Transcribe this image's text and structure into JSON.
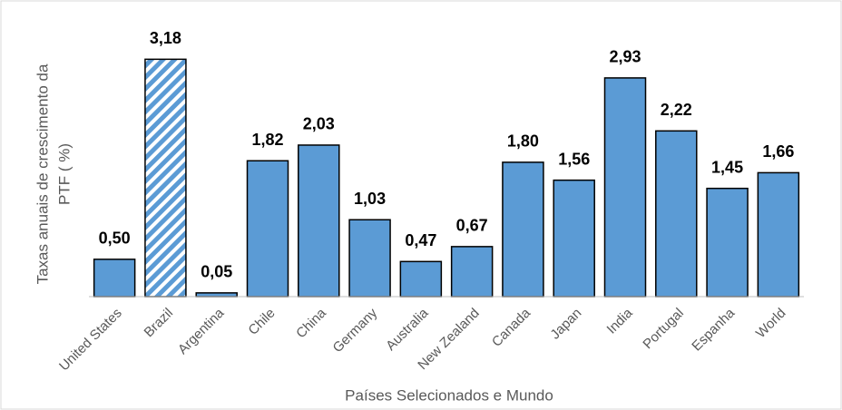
{
  "chart_data": {
    "type": "bar",
    "x_label": "Países Selecionados e Mundo",
    "y_label": [
      "Taxas anuais de crescimento da",
      "PTF ( %)"
    ],
    "categories": [
      "United States",
      "Brazil",
      "Argentina",
      "Chile",
      "China",
      "Germany",
      "Australia",
      "New Zealand",
      "Canada",
      "Japan",
      "India",
      "Portugal",
      "Espanha",
      "World"
    ],
    "values": [
      0.5,
      3.18,
      0.05,
      1.82,
      2.03,
      1.03,
      0.47,
      0.67,
      1.8,
      1.56,
      2.93,
      2.22,
      1.45,
      1.66
    ],
    "value_labels": [
      "0,50",
      "3,18",
      "0,05",
      "1,82",
      "2,03",
      "1,03",
      "0,47",
      "0,67",
      "1,80",
      "1,56",
      "2,93",
      "2,22",
      "1,45",
      "1,66"
    ],
    "color": "#5b9bd5",
    "hatched_categories": [
      "Brazil"
    ],
    "ylim": [
      0,
      3.5
    ]
  }
}
